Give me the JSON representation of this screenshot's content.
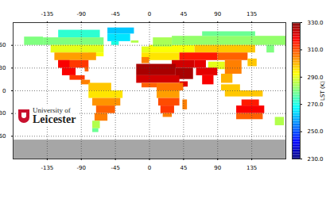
{
  "chart_data": {
    "type": "heatmap",
    "xlim": [
      -180,
      180
    ],
    "ylim": [
      -90,
      90
    ],
    "xticks": [
      -135,
      -90,
      -45,
      0,
      45,
      90,
      135
    ],
    "yticks": [
      -60,
      -30,
      0,
      30,
      60
    ],
    "grid": true,
    "cells": [
      [
        -55,
        -20,
        75,
        83,
        262
      ],
      [
        -55,
        -25,
        65,
        75,
        265
      ],
      [
        -50,
        -40,
        60,
        65,
        270
      ],
      [
        -120,
        -65,
        70,
        80,
        272
      ],
      [
        -165,
        -140,
        60,
        71,
        280
      ],
      [
        -140,
        -60,
        60,
        70,
        280
      ],
      [
        -24,
        -14,
        63,
        66,
        285
      ],
      [
        -130,
        -60,
        50,
        60,
        290
      ],
      [
        -80,
        -60,
        45,
        50,
        292
      ],
      [
        -125,
        -70,
        40,
        50,
        302
      ],
      [
        -120,
        -80,
        30,
        40,
        312
      ],
      [
        -120,
        -105,
        30,
        40,
        318
      ],
      [
        -85,
        -80,
        25,
        31,
        308
      ],
      [
        -115,
        -97,
        20,
        30,
        318
      ],
      [
        -105,
        -85,
        14,
        20,
        312
      ],
      [
        -90,
        -78,
        8,
        14,
        305
      ],
      [
        -80,
        -50,
        0,
        10,
        298
      ],
      [
        -80,
        -35,
        -10,
        0,
        295
      ],
      [
        -75,
        -38,
        -20,
        -10,
        303
      ],
      [
        -70,
        -45,
        -30,
        -20,
        308
      ],
      [
        -72,
        -55,
        -40,
        -30,
        305
      ],
      [
        -75,
        -65,
        -50,
        -40,
        285
      ],
      [
        -75,
        -67,
        -55,
        -50,
        278
      ],
      [
        -10,
        2,
        50,
        58,
        290
      ],
      [
        -10,
        40,
        40,
        50,
        295
      ],
      [
        0,
        60,
        50,
        60,
        292
      ],
      [
        5,
        30,
        58,
        70,
        284
      ],
      [
        -10,
        0,
        36,
        44,
        305
      ],
      [
        30,
        180,
        60,
        72,
        282
      ],
      [
        70,
        140,
        72,
        78,
        278
      ],
      [
        60,
        140,
        50,
        60,
        298
      ],
      [
        155,
        165,
        50,
        60,
        280
      ],
      [
        40,
        90,
        40,
        50,
        315
      ],
      [
        90,
        130,
        40,
        50,
        308
      ],
      [
        30,
        60,
        30,
        40,
        322
      ],
      [
        60,
        75,
        30,
        40,
        320
      ],
      [
        78,
        100,
        28,
        38,
        290
      ],
      [
        100,
        122,
        22,
        40,
        305
      ],
      [
        130,
        142,
        32,
        42,
        298
      ],
      [
        -17,
        35,
        20,
        35,
        326
      ],
      [
        35,
        58,
        15,
        30,
        326
      ],
      [
        62,
        90,
        20,
        30,
        320
      ],
      [
        70,
        85,
        8,
        20,
        318
      ],
      [
        95,
        110,
        10,
        22,
        300
      ],
      [
        -17,
        40,
        10,
        20,
        322
      ],
      [
        40,
        51,
        5,
        12,
        320
      ],
      [
        -10,
        10,
        4,
        10,
        308
      ],
      [
        10,
        45,
        0,
        10,
        306
      ],
      [
        10,
        40,
        -10,
        0,
        302
      ],
      [
        12,
        40,
        -20,
        -10,
        310
      ],
      [
        44,
        50,
        -25,
        -12,
        305
      ],
      [
        15,
        33,
        -30,
        -20,
        312
      ],
      [
        18,
        30,
        -35,
        -30,
        305
      ],
      [
        95,
        120,
        0,
        8,
        298
      ],
      [
        100,
        150,
        -8,
        0,
        298
      ],
      [
        122,
        145,
        -20,
        -12,
        315
      ],
      [
        115,
        152,
        -30,
        -20,
        318
      ],
      [
        115,
        150,
        -38,
        -30,
        308
      ],
      [
        166,
        178,
        -46,
        -35,
        285
      ]
    ],
    "no_data": {
      "lon": [
        -180,
        180
      ],
      "lat": [
        -90,
        -65
      ],
      "color": "#a6a6a6"
    },
    "colorbar": {
      "label": "LST (K)",
      "range": [
        230,
        330
      ],
      "ticks": [
        {
          "value": 230,
          "label": "230.0"
        },
        {
          "value": 250,
          "label": "250.0"
        },
        {
          "value": 270,
          "label": "270.0"
        },
        {
          "value": 290,
          "label": "290.0"
        },
        {
          "value": 310,
          "label": "310.0"
        },
        {
          "value": 330,
          "label": "330.0"
        }
      ],
      "colors": [
        "#00007f",
        "#0000ff",
        "#007fff",
        "#00ffff",
        "#7fff7f",
        "#ffff00",
        "#ff7f00",
        "#ff0000",
        "#7f0000"
      ]
    },
    "logo": [
      "University of",
      "Leicester"
    ]
  }
}
